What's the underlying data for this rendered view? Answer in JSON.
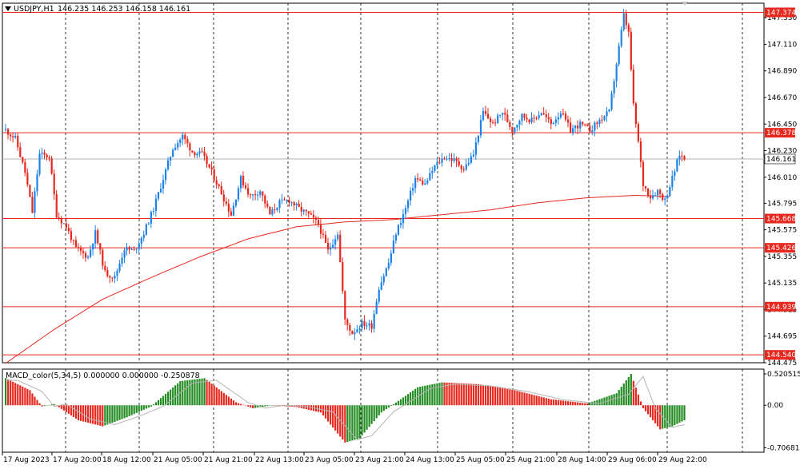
{
  "header": {
    "symbol": "USDJPY,H1",
    "ohlc": "146.235 146.253 146.158 146.161"
  },
  "macd_header": {
    "text": "MACD_color(5,34,5) 0.000000 0.000000 -0.250878"
  },
  "colors": {
    "bull": "#1e82e6",
    "bear": "#e6281e",
    "hline": "#e6281e",
    "ma": "#e6281e",
    "grid": "#000000",
    "macd_up": "#228b22",
    "macd_down": "#e6281e",
    "signal": "#b4b4b4",
    "bid": "#b4b4b4"
  },
  "price_axis": {
    "ticks": [
      "147.330",
      "147.110",
      "146.890",
      "146.670",
      "146.450",
      "146.230",
      "146.010",
      "145.795",
      "145.575",
      "145.355",
      "145.135",
      "144.915",
      "144.695",
      "144.475"
    ]
  },
  "levels": [
    {
      "label": "147.374",
      "value": 147.374
    },
    {
      "label": "146.378",
      "value": 146.378
    },
    {
      "label": "145.668",
      "value": 145.668
    },
    {
      "label": "145.426",
      "value": 145.426
    },
    {
      "label": "144.939",
      "value": 144.939
    },
    {
      "label": "144.540",
      "value": 144.54
    }
  ],
  "bid": {
    "label": "146.161",
    "value": 146.161
  },
  "macd_axis": {
    "ticks": [
      "0.520515",
      "0.00",
      "-0.706814"
    ]
  },
  "time_axis": {
    "labels": [
      "17 Aug 2023",
      "17 Aug 20:00",
      "18 Aug 12:00",
      "21 Aug 05:00",
      "21 Aug 21:00",
      "22 Aug 13:00",
      "23 Aug 05:00",
      "23 Aug 21:00",
      "24 Aug 13:00",
      "25 Aug 05:00",
      "25 Aug 21:00",
      "28 Aug 14:00",
      "29 Aug 06:00",
      "29 Aug 22:00"
    ]
  },
  "chart_data": {
    "type": "candlestick",
    "symbol": "USDJPY",
    "timeframe": "H1",
    "ylim": [
      144.475,
      147.45
    ],
    "horizontal_levels": [
      147.374,
      146.378,
      145.668,
      145.426,
      144.939,
      144.54
    ],
    "close_path": [
      [
        0,
        146.4
      ],
      [
        4,
        146.33
      ],
      [
        8,
        146.05
      ],
      [
        11,
        145.72
      ],
      [
        14,
        146.2
      ],
      [
        18,
        146.18
      ],
      [
        21,
        145.7
      ],
      [
        25,
        145.6
      ],
      [
        29,
        145.42
      ],
      [
        34,
        145.35
      ],
      [
        37,
        145.55
      ],
      [
        41,
        145.22
      ],
      [
        45,
        145.18
      ],
      [
        49,
        145.42
      ],
      [
        53,
        145.4
      ],
      [
        57,
        145.55
      ],
      [
        61,
        145.75
      ],
      [
        65,
        146.0
      ],
      [
        69,
        146.25
      ],
      [
        73,
        146.35
      ],
      [
        77,
        146.22
      ],
      [
        81,
        146.2
      ],
      [
        85,
        146.05
      ],
      [
        89,
        145.88
      ],
      [
        93,
        145.7
      ],
      [
        97,
        146.0
      ],
      [
        101,
        145.85
      ],
      [
        105,
        145.9
      ],
      [
        109,
        145.7
      ],
      [
        113,
        145.8
      ],
      [
        117,
        145.82
      ],
      [
        121,
        145.75
      ],
      [
        125,
        145.7
      ],
      [
        129,
        145.62
      ],
      [
        133,
        145.4
      ],
      [
        137,
        145.55
      ],
      [
        140,
        144.82
      ],
      [
        143,
        144.72
      ],
      [
        147,
        144.8
      ],
      [
        151,
        144.78
      ],
      [
        154,
        145.1
      ],
      [
        158,
        145.3
      ],
      [
        161,
        145.55
      ],
      [
        165,
        145.75
      ],
      [
        169,
        146.0
      ],
      [
        173,
        145.95
      ],
      [
        177,
        146.1
      ],
      [
        181,
        146.18
      ],
      [
        185,
        146.15
      ],
      [
        189,
        146.08
      ],
      [
        193,
        146.2
      ],
      [
        197,
        146.55
      ],
      [
        201,
        146.45
      ],
      [
        205,
        146.55
      ],
      [
        209,
        146.4
      ],
      [
        213,
        146.52
      ],
      [
        217,
        146.48
      ],
      [
        221,
        146.55
      ],
      [
        225,
        146.45
      ],
      [
        229,
        146.55
      ],
      [
        233,
        146.4
      ],
      [
        237,
        146.45
      ],
      [
        241,
        146.4
      ],
      [
        245,
        146.48
      ],
      [
        249,
        146.55
      ],
      [
        252,
        146.95
      ],
      [
        255,
        147.35
      ],
      [
        257,
        147.2
      ],
      [
        259,
        146.6
      ],
      [
        261,
        146.3
      ],
      [
        263,
        145.95
      ],
      [
        266,
        145.85
      ],
      [
        269,
        145.9
      ],
      [
        272,
        145.82
      ],
      [
        275,
        146.0
      ],
      [
        278,
        146.2
      ],
      [
        280,
        146.161
      ]
    ],
    "bars": 281,
    "ma_path": [
      [
        0,
        144.47
      ],
      [
        20,
        144.75
      ],
      [
        40,
        145.0
      ],
      [
        60,
        145.18
      ],
      [
        80,
        145.35
      ],
      [
        100,
        145.5
      ],
      [
        120,
        145.6
      ],
      [
        140,
        145.64
      ],
      [
        160,
        145.66
      ],
      [
        180,
        145.7
      ],
      [
        200,
        145.74
      ],
      [
        220,
        145.8
      ],
      [
        240,
        145.84
      ],
      [
        260,
        145.86
      ],
      [
        275,
        145.85
      ]
    ],
    "macd_path": [
      [
        0,
        0.45
      ],
      [
        10,
        0.25
      ],
      [
        15,
        -0.02
      ],
      [
        20,
        0.02
      ],
      [
        30,
        -0.25
      ],
      [
        40,
        -0.35
      ],
      [
        50,
        -0.2
      ],
      [
        60,
        -0.02
      ],
      [
        72,
        0.4
      ],
      [
        82,
        0.45
      ],
      [
        95,
        0.05
      ],
      [
        102,
        -0.05
      ],
      [
        110,
        0.0
      ],
      [
        120,
        -0.03
      ],
      [
        130,
        -0.12
      ],
      [
        140,
        -0.62
      ],
      [
        146,
        -0.55
      ],
      [
        155,
        -0.12
      ],
      [
        163,
        0.1
      ],
      [
        170,
        0.3
      ],
      [
        180,
        0.38
      ],
      [
        195,
        0.35
      ],
      [
        210,
        0.25
      ],
      [
        225,
        0.1
      ],
      [
        240,
        0.03
      ],
      [
        252,
        0.2
      ],
      [
        258,
        0.52
      ],
      [
        263,
        -0.05
      ],
      [
        270,
        -0.4
      ],
      [
        275,
        -0.35
      ],
      [
        280,
        -0.25
      ]
    ],
    "macd_ylim": [
      -0.78,
      0.6
    ]
  }
}
